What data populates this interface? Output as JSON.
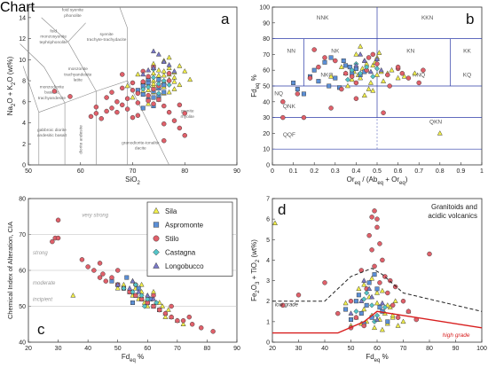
{
  "colors": {
    "sila": "#f2ef4a",
    "aspromonte": "#5b8fd6",
    "stilo": "#e0606a",
    "castagna": "#54c4c8",
    "longobucco": "#7a79c8",
    "field_line": "#888888",
    "high_grade": "#d81e1e",
    "low_grade": "#222222",
    "grid": "#2d3ca8"
  },
  "chart_data": [
    {
      "panel": "a",
      "type": "scatter",
      "xlabel": "SiO2",
      "ylabel": "Na2O + K2O (wt%)",
      "xlim": [
        50,
        90
      ],
      "ylim": [
        0,
        15
      ],
      "xticks": [
        50,
        60,
        70,
        80,
        90
      ],
      "yticks": [
        0,
        2,
        4,
        6,
        8,
        10,
        12,
        14
      ],
      "fields": [
        "foid syenite phonolite",
        "foid monzosyenite tephriphonolite",
        "syenite trachyte-trachydacite",
        "monzonite trachyandesite latite",
        "monzodiorite basaltic trachyandesite",
        "gabbroic diorite andesitic basalt",
        "diorite andesite",
        "granodiorite-tonalite dacite",
        "granite rhyolite"
      ],
      "series": [
        {
          "key": "sila",
          "x": [
            72,
            73,
            74,
            75,
            76,
            77,
            78,
            79,
            75,
            74,
            76,
            73,
            77,
            78,
            72,
            74,
            75,
            76,
            77,
            73,
            74,
            76,
            78,
            75,
            71,
            79,
            80,
            77,
            75,
            73,
            72,
            76,
            74,
            78,
            70,
            69,
            81,
            76,
            77,
            75,
            74,
            76,
            73
          ],
          "y": [
            7.8,
            8.2,
            7.5,
            8.5,
            7.9,
            8.1,
            8.8,
            7.6,
            9.0,
            6.9,
            7.4,
            7.1,
            8.6,
            8.3,
            7.0,
            8.0,
            7.3,
            8.9,
            9.2,
            8.4,
            7.7,
            6.8,
            7.2,
            6.5,
            8.6,
            9.4,
            8.9,
            10.2,
            6.2,
            5.8,
            7.9,
            8.5,
            9.6,
            7.9,
            6.4,
            7.5,
            8.1,
            7.8,
            6.9,
            8.1,
            8.7,
            9.9,
            7.6
          ]
        },
        {
          "key": "aspromonte",
          "x": [
            72,
            73,
            74,
            75,
            76,
            73,
            74,
            71,
            72,
            75,
            76,
            73,
            74,
            72,
            75
          ],
          "y": [
            7.5,
            8.0,
            7.0,
            6.6,
            7.6,
            6.2,
            5.6,
            7.1,
            5.4,
            7.3,
            6.9,
            7.8,
            6.4,
            6.7,
            8.1
          ]
        },
        {
          "key": "stilo",
          "x": [
            55,
            58,
            62,
            63,
            64,
            65,
            66,
            67,
            68,
            69,
            70,
            71,
            72,
            73,
            74,
            75,
            76,
            77,
            78,
            79,
            80,
            76,
            71,
            70,
            68,
            72,
            74,
            77,
            63,
            65,
            67,
            71,
            73,
            75,
            77,
            69,
            70,
            74,
            76,
            79,
            80,
            66,
            68,
            73
          ],
          "y": [
            7.0,
            6.5,
            4.6,
            4.9,
            4.4,
            5.1,
            5.4,
            6.0,
            5.7,
            6.3,
            7.1,
            6.8,
            7.9,
            8.4,
            7.2,
            6.2,
            5.6,
            5.0,
            4.2,
            3.5,
            2.8,
            2.3,
            5.9,
            7.8,
            8.6,
            8.9,
            9.3,
            8.0,
            5.5,
            6.4,
            5.0,
            4.7,
            6.6,
            7.5,
            8.7,
            5.3,
            4.5,
            5.8,
            3.9,
            5.7,
            4.9,
            6.9,
            7.3,
            6.1
          ]
        },
        {
          "key": "castagna",
          "x": [
            73,
            75,
            76,
            74,
            72,
            77,
            75,
            74
          ],
          "y": [
            7.4,
            7.7,
            8.0,
            8.3,
            7.2,
            7.6,
            6.8,
            9.1
          ]
        },
        {
          "key": "longobucco",
          "x": [
            72,
            74,
            76,
            73,
            75,
            77,
            78,
            74
          ],
          "y": [
            8.6,
            9.2,
            9.8,
            9.0,
            10.5,
            9.5,
            8.9,
            10.8
          ]
        }
      ]
    },
    {
      "panel": "b",
      "type": "scatter",
      "xlabel": "Oreq / (Abeq + Oreq)",
      "ylabel": "Fdeq %",
      "xlim": [
        0,
        1
      ],
      "ylim": [
        0,
        100
      ],
      "xticks": [
        0,
        0.1,
        0.2,
        0.3,
        0.4,
        0.5,
        0.6,
        0.7,
        0.8,
        0.9,
        1
      ],
      "yticks": [
        0,
        10,
        20,
        30,
        40,
        50,
        60,
        70,
        80,
        90,
        100
      ],
      "fields": [
        "NNK",
        "KKN",
        "NN",
        "NK",
        "KN",
        "KK",
        "NKQ",
        "KNQ",
        "NQ",
        "KQ",
        "QNK",
        "QKN",
        "QQF"
      ],
      "series": [
        {
          "key": "sila",
          "x": [
            0.35,
            0.4,
            0.42,
            0.45,
            0.48,
            0.5,
            0.52,
            0.38,
            0.44,
            0.47,
            0.55,
            0.6,
            0.4,
            0.46,
            0.43,
            0.5,
            0.36,
            0.49,
            0.53,
            0.41,
            0.57,
            0.45,
            0.63,
            0.33,
            0.68,
            0.39,
            0.48,
            0.51,
            0.44,
            0.8,
            0.28,
            0.42
          ],
          "y": [
            58,
            62,
            55,
            60,
            63,
            57,
            59,
            54,
            66,
            52,
            58,
            55,
            70,
            48,
            61,
            68,
            50,
            65,
            53,
            57,
            60,
            64,
            56,
            62,
            58,
            59,
            47,
            71,
            44,
            20,
            56,
            75
          ]
        },
        {
          "key": "aspromonte",
          "x": [
            0.1,
            0.12,
            0.2,
            0.25,
            0.3,
            0.35,
            0.38,
            0.4,
            0.42,
            0.32,
            0.28,
            0.22,
            0.15,
            0.18,
            0.27,
            0.34,
            0.44,
            0.37
          ],
          "y": [
            52,
            48,
            60,
            65,
            55,
            63,
            58,
            61,
            57,
            49,
            68,
            53,
            45,
            56,
            50,
            66,
            59,
            62
          ]
        },
        {
          "key": "stilo",
          "x": [
            0.05,
            0.12,
            0.18,
            0.22,
            0.3,
            0.35,
            0.4,
            0.45,
            0.5,
            0.55,
            0.6,
            0.65,
            0.7,
            0.2,
            0.25,
            0.33,
            0.4,
            0.48,
            0.56,
            0.62,
            0.72,
            0.05,
            0.15,
            0.28,
            0.38,
            0.53,
            0.6,
            0.46
          ],
          "y": [
            40,
            45,
            55,
            62,
            66,
            58,
            52,
            60,
            64,
            57,
            61,
            55,
            52,
            73,
            68,
            48,
            42,
            70,
            50,
            58,
            60,
            30,
            30,
            36,
            56,
            33,
            62,
            68
          ]
        },
        {
          "key": "castagna",
          "x": [
            0.38,
            0.42,
            0.45,
            0.48,
            0.4,
            0.5,
            0.36
          ],
          "y": [
            60,
            58,
            62,
            56,
            64,
            61,
            54
          ]
        },
        {
          "key": "longobucco",
          "x": [
            0.4,
            0.44,
            0.47,
            0.5,
            0.42,
            0.52
          ],
          "y": [
            63,
            66,
            59,
            67,
            70,
            60
          ]
        }
      ]
    },
    {
      "panel": "c",
      "type": "scatter",
      "xlabel": "Fdeq %",
      "ylabel": "Chemical Index of Alteration, CIA",
      "xlim": [
        20,
        90
      ],
      "ylim": [
        40,
        80
      ],
      "xticks": [
        20,
        30,
        40,
        50,
        60,
        70,
        80,
        90
      ],
      "yticks": [
        40,
        50,
        60,
        70,
        80
      ],
      "zones": [
        "very strong",
        "strong",
        "moderate",
        "incipient"
      ],
      "series": [
        {
          "key": "sila",
          "x": [
            50,
            52,
            54,
            55,
            56,
            57,
            58,
            59,
            60,
            61,
            62,
            63,
            64,
            65,
            66,
            67,
            68,
            70,
            72,
            55,
            58,
            60,
            62,
            64,
            66,
            35
          ],
          "y": [
            55,
            56,
            54,
            53,
            55,
            52,
            54,
            51,
            53,
            52,
            50,
            51,
            49,
            50,
            48,
            49,
            47,
            46,
            45,
            57,
            56,
            50,
            54,
            51,
            47,
            53
          ]
        },
        {
          "key": "aspromonte",
          "x": [
            48,
            50,
            52,
            54,
            56,
            58,
            60,
            62,
            64,
            53,
            57,
            61,
            55
          ],
          "y": [
            57,
            56,
            55,
            54,
            53,
            52,
            51,
            50,
            49,
            58,
            55,
            52,
            51
          ]
        },
        {
          "key": "stilo",
          "x": [
            28,
            29,
            30,
            30,
            38,
            40,
            42,
            44,
            45,
            46,
            48,
            50,
            52,
            54,
            56,
            58,
            60,
            62,
            64,
            66,
            68,
            70,
            72,
            75,
            78,
            82,
            44,
            50,
            56,
            62,
            68,
            74
          ],
          "y": [
            68,
            69,
            69,
            74,
            63,
            61,
            60,
            58,
            59,
            57,
            58,
            56,
            55,
            54,
            53,
            52,
            51,
            50,
            49,
            48,
            47,
            46,
            46,
            45,
            44,
            43,
            62,
            60,
            56,
            53,
            50,
            47
          ]
        },
        {
          "key": "castagna",
          "x": [
            52,
            55,
            58,
            60,
            63,
            56,
            59
          ],
          "y": [
            55,
            54,
            53,
            52,
            51,
            56,
            50
          ]
        },
        {
          "key": "longobucco",
          "x": [
            50,
            54,
            57,
            60,
            62,
            55
          ],
          "y": [
            56,
            55,
            54,
            53,
            52,
            57
          ]
        }
      ]
    },
    {
      "panel": "d",
      "type": "scatter",
      "title": "Granitoids and acidic volcanics",
      "xlabel": "Fdeq %",
      "ylabel": "Fe2O3 + TiO2 (wt%)",
      "xlim": [
        20,
        100
      ],
      "ylim": [
        0,
        7
      ],
      "xticks": [
        20,
        30,
        40,
        50,
        60,
        70,
        80,
        90,
        100
      ],
      "yticks": [
        0,
        1,
        2,
        3,
        4,
        5,
        6,
        7
      ],
      "curves": [
        {
          "key": "low_grade",
          "label": "low grade",
          "x": [
            20,
            40,
            50,
            58,
            62,
            70,
            100
          ],
          "y": [
            2.0,
            2.0,
            3.2,
            3.6,
            3.3,
            2.4,
            1.5
          ]
        },
        {
          "key": "high_grade",
          "label": "high grade",
          "x": [
            20,
            45,
            55,
            60,
            65,
            100
          ],
          "y": [
            0.45,
            0.45,
            1.0,
            1.5,
            1.4,
            0.7
          ]
        }
      ],
      "series": [
        {
          "key": "sila",
          "x": [
            50,
            52,
            54,
            55,
            56,
            57,
            58,
            59,
            60,
            61,
            62,
            63,
            64,
            65,
            66,
            67,
            68,
            70,
            72,
            55,
            58,
            60,
            62,
            64,
            66,
            21,
            48,
            53
          ],
          "y": [
            0.8,
            1.2,
            0.9,
            1.6,
            1.0,
            2.2,
            1.3,
            0.7,
            1.9,
            1.1,
            2.5,
            1.4,
            0.9,
            1.7,
            1.2,
            2.0,
            0.8,
            1.0,
            1.5,
            2.8,
            3.1,
            2.4,
            0.6,
            1.8,
            1.3,
            5.8,
            1.9,
            2.6
          ]
        },
        {
          "key": "aspromonte",
          "x": [
            48,
            50,
            52,
            54,
            56,
            58,
            60,
            62,
            64,
            53,
            57,
            61,
            55,
            59
          ],
          "y": [
            1.6,
            1.1,
            2.0,
            1.4,
            1.8,
            1.2,
            2.6,
            1.5,
            1.0,
            2.3,
            2.9,
            1.7,
            0.9,
            3.3
          ]
        },
        {
          "key": "stilo",
          "x": [
            24,
            30,
            40,
            45,
            50,
            52,
            54,
            56,
            58,
            58,
            59,
            60,
            60,
            61,
            62,
            63,
            64,
            66,
            68,
            70,
            72,
            75,
            80,
            57,
            59,
            61,
            55,
            65,
            50,
            67
          ],
          "y": [
            1.8,
            2.3,
            2.9,
            1.4,
            2.0,
            1.2,
            3.5,
            2.6,
            4.5,
            6.1,
            6.4,
            5.6,
            6.0,
            4.8,
            4.0,
            3.2,
            2.4,
            1.8,
            1.2,
            2.0,
            1.5,
            1.1,
            4.3,
            5.2,
            3.7,
            2.9,
            0.8,
            3.0,
            0.7,
            2.7
          ]
        },
        {
          "key": "castagna",
          "x": [
            52,
            55,
            58,
            60,
            63,
            56,
            59
          ],
          "y": [
            1.5,
            2.1,
            1.8,
            1.3,
            1.7,
            2.4,
            1.0
          ]
        },
        {
          "key": "longobucco",
          "x": [
            50,
            54,
            57,
            60,
            62,
            55,
            58
          ],
          "y": [
            1.4,
            2.0,
            2.6,
            1.1,
            1.9,
            3.0,
            2.2
          ]
        }
      ]
    }
  ],
  "panel_labels": [
    "a",
    "b",
    "c",
    "d"
  ],
  "legend": [
    {
      "key": "sila",
      "label": "Sila",
      "marker": "triangle"
    },
    {
      "key": "aspromonte",
      "label": "Aspromonte",
      "marker": "square"
    },
    {
      "key": "stilo",
      "label": "Stilo",
      "marker": "circle"
    },
    {
      "key": "castagna",
      "label": "Castagna",
      "marker": "diamond"
    },
    {
      "key": "longobucco",
      "label": "Longobucco",
      "marker": "triangle"
    }
  ]
}
